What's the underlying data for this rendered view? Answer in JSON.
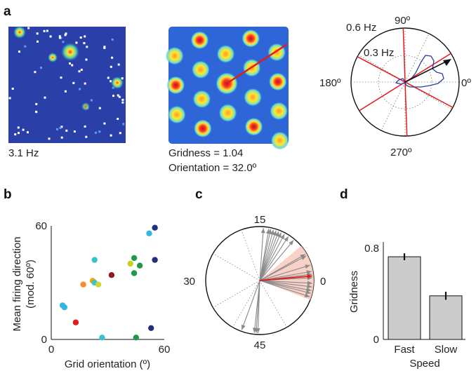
{
  "panel_letters": [
    "a",
    "b",
    "c",
    "d"
  ],
  "colors": {
    "map_bg": "#2a40a8",
    "red_line": "#e41a1c",
    "fan_fill": "#f7c9bd",
    "bar_fill": "#cccccc",
    "polar_trace": "#2c3e9e"
  },
  "panel_a": {
    "rate_map_label": "3.1 Hz",
    "autocorr_labels": [
      "Gridness = 1.04",
      "Orientation = 32.0º"
    ],
    "polar": {
      "ring_labels": [
        "0.6 Hz",
        "0.3 Hz"
      ],
      "angle_labels": {
        "top": "90º",
        "left": "180º",
        "right": "0º",
        "bottom": "270º"
      }
    }
  },
  "chart_data": [
    {
      "panel": "b",
      "type": "scatter",
      "xlabel": "Grid orientation (º)",
      "ylabel": [
        "Mean firing direction",
        "(mod. 60º)"
      ],
      "xlim": [
        0,
        60
      ],
      "ylim": [
        0,
        60
      ],
      "xticks": [
        "0",
        "60"
      ],
      "yticks": [
        "0",
        "60"
      ],
      "points": [
        {
          "x": 6,
          "y": 18,
          "color": "#33b6e0"
        },
        {
          "x": 7,
          "y": 17,
          "color": "#33b6e0"
        },
        {
          "x": 13,
          "y": 9,
          "color": "#e41a1c"
        },
        {
          "x": 17,
          "y": 29,
          "color": "#f28e2b"
        },
        {
          "x": 22,
          "y": 31,
          "color": "#ff9f00"
        },
        {
          "x": 23,
          "y": 42,
          "color": "#3cc1c8"
        },
        {
          "x": 23,
          "y": 30,
          "color": "#3cc1c8"
        },
        {
          "x": 25,
          "y": 29,
          "color": "#c7d93a"
        },
        {
          "x": 27,
          "y": 1,
          "color": "#3cc1c8"
        },
        {
          "x": 32,
          "y": 34,
          "color": "#8b1c24"
        },
        {
          "x": 42,
          "y": 40,
          "color": "#c8d21f"
        },
        {
          "x": 44,
          "y": 43,
          "color": "#1e9a4a"
        },
        {
          "x": 44,
          "y": 35,
          "color": "#1e9a4a"
        },
        {
          "x": 45,
          "y": 1,
          "color": "#1e9a4a"
        },
        {
          "x": 47,
          "y": 39,
          "color": "#1e9a4a"
        },
        {
          "x": 52,
          "y": 56,
          "color": "#33b6e0"
        },
        {
          "x": 53,
          "y": 6,
          "color": "#232f7a"
        },
        {
          "x": 55,
          "y": 42,
          "color": "#232f7a"
        },
        {
          "x": 55,
          "y": 59,
          "color": "#232f7a"
        }
      ]
    },
    {
      "panel": "c",
      "type": "polar",
      "angle_labels": {
        "top": "15",
        "left": "30",
        "right": "0",
        "bottom": "45"
      },
      "arrow_angles_deg": [
        -96,
        -94,
        -92,
        -110,
        86,
        80,
        78,
        75,
        72,
        69,
        66,
        62,
        57,
        50,
        30,
        28,
        17,
        10,
        7,
        3,
        -3,
        -7,
        -11,
        -14,
        -18
      ],
      "mean_angle_deg": 5,
      "fan_range_deg": [
        -21,
        40
      ],
      "dotted_ref_angles_deg": [
        150,
        210,
        240,
        110,
        -60
      ]
    },
    {
      "panel": "d",
      "type": "bar",
      "xlabel": "Speed",
      "ylabel": "Gridness",
      "categories": [
        "Fast",
        "Slow"
      ],
      "values": [
        0.72,
        0.38
      ],
      "errors": [
        0.03,
        0.035
      ],
      "ylim": [
        0,
        0.8
      ],
      "yticks": [
        "0",
        "0.8"
      ]
    }
  ]
}
